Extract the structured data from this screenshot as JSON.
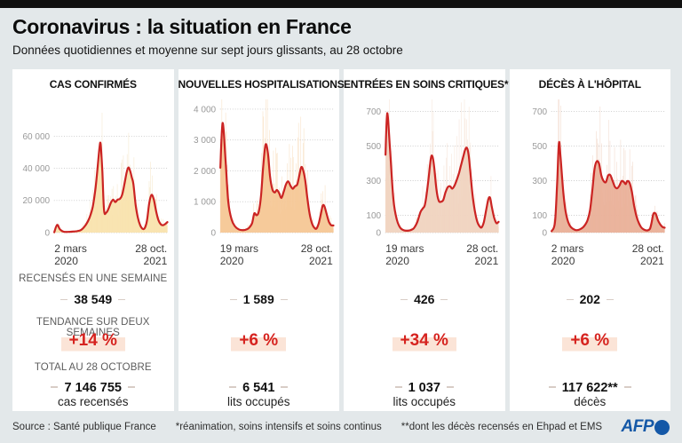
{
  "header": {
    "title": "Coronavirus : la situation en France",
    "subtitle": "Données quotidiennes et moyenne sur sept jours glissants, au 28 octobre"
  },
  "colors": {
    "background": "#e3e8ea",
    "top_bar": "#101010",
    "line_red": "#cb2423",
    "percent_red": "#d6231f",
    "highlight_pink": "#fbe4d7",
    "afp_blue": "#1458a7",
    "grid_gray": "#c4c4c4"
  },
  "panels": [
    {
      "title": "CAS CONFIRMÉS",
      "x_start_line1": "2 mars",
      "x_start_line2": "2020",
      "x_end_line1": "28 oct.",
      "x_end_line2": "2021",
      "week_label": "RECENSÉS EN UNE SEMAINE",
      "week_value": "38 549",
      "trend_label": "TENDANCE SUR DEUX SEMAINES",
      "trend_value": "+14 %",
      "total_label": "TOTAL AU 28 OCTOBRE",
      "total_value": "7 146 755",
      "total_unit": "cas recensés"
    },
    {
      "title": "NOUVELLES HOSPITALISATIONS",
      "x_start_line1": "19 mars",
      "x_start_line2": "2020",
      "x_end_line1": "28 oct.",
      "x_end_line2": "2021",
      "week_label": "",
      "week_value": "1 589",
      "trend_label": "",
      "trend_value": "+6 %",
      "total_label": "",
      "total_value": "6 541",
      "total_unit": "lits occupés"
    },
    {
      "title": "ENTRÉES EN SOINS CRITIQUES*",
      "x_start_line1": "19 mars",
      "x_start_line2": "2020",
      "x_end_line1": "28 oct.",
      "x_end_line2": "2021",
      "week_label": "",
      "week_value": "426",
      "trend_label": "",
      "trend_value": "+34 %",
      "total_label": "",
      "total_value": "1 037",
      "total_unit": "lits occupés"
    },
    {
      "title": "DÉCÈS À L'HÔPITAL",
      "x_start_line1": "2 mars",
      "x_start_line2": "2020",
      "x_end_line1": "28 oct.",
      "x_end_line2": "2021",
      "week_label": "",
      "week_value": "202",
      "trend_label": "",
      "trend_value": "+6 %",
      "total_label": "",
      "total_value": "117 622**",
      "total_unit": "décès"
    }
  ],
  "chart_data": [
    {
      "type": "area",
      "title": "CAS CONFIRMÉS",
      "x_axis": {
        "start": "2 mars 2020",
        "end": "28 oct. 2021"
      },
      "ylim": [
        0,
        60000
      ],
      "yticks": [
        {
          "v": 0,
          "label": "0"
        },
        {
          "v": 20000,
          "label": "20 000"
        },
        {
          "v": 40000,
          "label": "40 000"
        },
        {
          "v": 60000,
          "label": "60 000"
        }
      ],
      "y_top_value": 84000,
      "daily_bars": true,
      "series": [
        {
          "name": "moyenne sur 7 jours",
          "x": [
            0,
            0.025,
            0.05,
            0.08,
            0.12,
            0.16,
            0.2,
            0.24,
            0.28,
            0.31,
            0.34,
            0.365,
            0.385,
            0.4,
            0.41,
            0.425,
            0.44,
            0.46,
            0.48,
            0.5,
            0.52,
            0.54,
            0.56,
            0.58,
            0.6,
            0.62,
            0.64,
            0.655,
            0.67,
            0.685,
            0.7,
            0.72,
            0.74,
            0.76,
            0.78,
            0.8,
            0.82,
            0.84,
            0.86,
            0.88,
            0.9,
            0.92,
            0.94,
            0.96,
            0.98,
            1.0
          ],
          "values": [
            200,
            4800,
            2000,
            600,
            450,
            600,
            900,
            1800,
            5000,
            9000,
            16000,
            28000,
            42000,
            53000,
            55000,
            38000,
            14000,
            12500,
            15000,
            18500,
            20500,
            19000,
            20500,
            21000,
            23500,
            30000,
            37500,
            40500,
            38500,
            34500,
            30000,
            17000,
            9000,
            4500,
            2400,
            2800,
            7500,
            18500,
            23500,
            20500,
            13500,
            8000,
            5300,
            4600,
            5300,
            6500
          ]
        }
      ],
      "fill_color": "#f8e2ac",
      "spike_color": "#f6ead0",
      "line_color": "#cb2423"
    },
    {
      "type": "area",
      "title": "NOUVELLES HOSPITALISATIONS",
      "x_axis": {
        "start": "19 mars 2020",
        "end": "28 oct. 2021"
      },
      "ylim": [
        0,
        4000
      ],
      "yticks": [
        {
          "v": 0,
          "label": "0"
        },
        {
          "v": 1000,
          "label": "1 000"
        },
        {
          "v": 2000,
          "label": "2 000"
        },
        {
          "v": 3000,
          "label": "3 000"
        },
        {
          "v": 4000,
          "label": "4 000"
        }
      ],
      "y_top_value": 4370,
      "daily_bars": true,
      "series": [
        {
          "name": "moyenne sur 7 jours",
          "x": [
            0,
            0.02,
            0.045,
            0.07,
            0.1,
            0.13,
            0.16,
            0.19,
            0.22,
            0.25,
            0.28,
            0.3,
            0.32,
            0.34,
            0.36,
            0.38,
            0.4,
            0.42,
            0.44,
            0.46,
            0.48,
            0.5,
            0.52,
            0.54,
            0.56,
            0.58,
            0.6,
            0.62,
            0.64,
            0.66,
            0.68,
            0.7,
            0.715,
            0.73,
            0.75,
            0.77,
            0.79,
            0.81,
            0.83,
            0.85,
            0.87,
            0.89,
            0.905,
            0.92,
            0.94,
            0.96,
            0.98,
            1.0
          ],
          "values": [
            2100,
            3550,
            2400,
            1000,
            420,
            200,
            110,
            80,
            90,
            140,
            300,
            620,
            560,
            680,
            1200,
            2200,
            2850,
            2600,
            1800,
            1400,
            1300,
            1380,
            1280,
            1120,
            1320,
            1560,
            1660,
            1520,
            1420,
            1500,
            1560,
            1880,
            2120,
            2050,
            1700,
            1100,
            600,
            300,
            160,
            130,
            300,
            620,
            870,
            860,
            600,
            350,
            240,
            230
          ]
        }
      ],
      "fill_color": "#f5c795",
      "spike_color": "#f9e3c8",
      "line_color": "#cb2423"
    },
    {
      "type": "area",
      "title": "ENTRÉES EN SOINS CRITIQUES*",
      "x_axis": {
        "start": "19 mars 2020",
        "end": "28 oct. 2021"
      },
      "ylim": [
        0,
        700
      ],
      "yticks": [
        {
          "v": 0,
          "label": "0"
        },
        {
          "v": 100,
          "label": "100"
        },
        {
          "v": 300,
          "label": "300"
        },
        {
          "v": 500,
          "label": "500"
        },
        {
          "v": 700,
          "label": "700"
        }
      ],
      "y_top_value": 780,
      "daily_bars": true,
      "series": [
        {
          "name": "moyenne sur 7 jours",
          "x": [
            0,
            0.015,
            0.04,
            0.07,
            0.1,
            0.13,
            0.16,
            0.19,
            0.22,
            0.25,
            0.28,
            0.31,
            0.33,
            0.35,
            0.375,
            0.4,
            0.415,
            0.43,
            0.45,
            0.47,
            0.49,
            0.51,
            0.53,
            0.55,
            0.57,
            0.59,
            0.61,
            0.63,
            0.65,
            0.67,
            0.69,
            0.705,
            0.72,
            0.735,
            0.75,
            0.77,
            0.79,
            0.81,
            0.83,
            0.85,
            0.87,
            0.89,
            0.91,
            0.925,
            0.94,
            0.96,
            0.98,
            1.0
          ],
          "values": [
            450,
            690,
            480,
            190,
            75,
            28,
            14,
            11,
            14,
            25,
            60,
            120,
            140,
            165,
            280,
            425,
            440,
            380,
            250,
            185,
            178,
            188,
            232,
            262,
            268,
            254,
            272,
            305,
            345,
            395,
            445,
            480,
            490,
            450,
            350,
            215,
            125,
            65,
            38,
            30,
            62,
            130,
            195,
            200,
            148,
            88,
            55,
            62
          ]
        }
      ],
      "fill_color": "#f0d2bf",
      "spike_color": "#f7e7db",
      "line_color": "#cb2423"
    },
    {
      "type": "area",
      "title": "DÉCÈS À L'HÔPITAL",
      "x_axis": {
        "start": "2 mars 2020",
        "end": "28 oct. 2021"
      },
      "ylim": [
        0,
        700
      ],
      "yticks": [
        {
          "v": 0,
          "label": "0"
        },
        {
          "v": 100,
          "label": "100"
        },
        {
          "v": 300,
          "label": "300"
        },
        {
          "v": 500,
          "label": "500"
        },
        {
          "v": 700,
          "label": "700"
        }
      ],
      "y_top_value": 780,
      "daily_bars": true,
      "series": [
        {
          "name": "moyenne sur 7 jours",
          "x": [
            0,
            0.03,
            0.05,
            0.065,
            0.08,
            0.1,
            0.12,
            0.14,
            0.16,
            0.18,
            0.2,
            0.22,
            0.24,
            0.26,
            0.28,
            0.3,
            0.32,
            0.34,
            0.36,
            0.38,
            0.4,
            0.42,
            0.44,
            0.46,
            0.48,
            0.5,
            0.52,
            0.54,
            0.56,
            0.58,
            0.6,
            0.62,
            0.64,
            0.655,
            0.67,
            0.69,
            0.71,
            0.73,
            0.75,
            0.77,
            0.79,
            0.81,
            0.83,
            0.85,
            0.87,
            0.885,
            0.9,
            0.92,
            0.94,
            0.96,
            0.98,
            1.0
          ],
          "values": [
            8,
            60,
            300,
            520,
            430,
            260,
            140,
            75,
            42,
            26,
            18,
            14,
            16,
            22,
            32,
            48,
            75,
            130,
            240,
            370,
            412,
            398,
            330,
            298,
            292,
            330,
            332,
            298,
            265,
            256,
            272,
            298,
            292,
            280,
            298,
            288,
            235,
            155,
            95,
            58,
            33,
            20,
            14,
            13,
            22,
            60,
            108,
            110,
            72,
            48,
            33,
            28
          ]
        }
      ],
      "fill_color": "#e9af97",
      "spike_color": "#f3dcd0",
      "line_color": "#cb2423"
    }
  ],
  "footer": {
    "source": "Source : Santé publique France",
    "note_critical_care": "*réanimation, soins intensifs et soins continus",
    "note_deaths": "**dont les décès recensés en Ehpad et EMS",
    "logo_text": "AFP"
  }
}
